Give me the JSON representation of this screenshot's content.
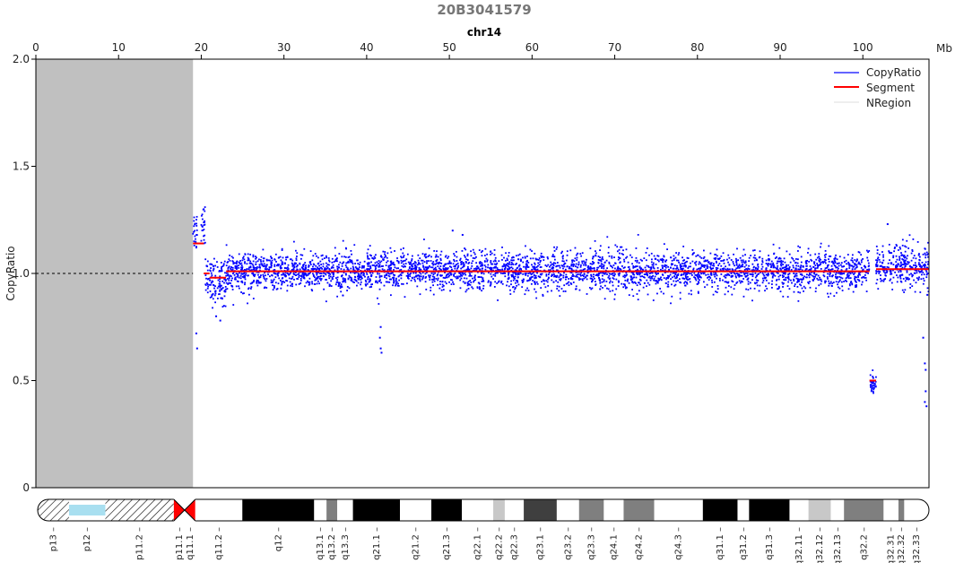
{
  "chart_data": {
    "type": "scatter",
    "title": "20B3041579",
    "subtitle": "chr14",
    "x_unit": "Mb",
    "xlabel": "",
    "ylabel": "CopyRatio",
    "xlim": [
      0,
      108
    ],
    "ylim": [
      0,
      2.0
    ],
    "x_ticks": [
      0,
      10,
      20,
      30,
      40,
      50,
      60,
      70,
      80,
      90,
      100
    ],
    "y_ticks": [
      0,
      0.5,
      1.0,
      1.5,
      2.0
    ],
    "y_tick_labels": [
      "0",
      "0.5",
      "1.0",
      "1.5",
      "2.0"
    ],
    "reference_line": 1.0,
    "legend_position": "top-right",
    "series": [
      {
        "name": "CopyRatio",
        "kind": "points",
        "color": "#0000ff"
      },
      {
        "name": "Segment",
        "kind": "line",
        "color": "#ff0000",
        "segments": [
          {
            "start": 19.0,
            "end": 20.3,
            "value": 1.14
          },
          {
            "start": 20.3,
            "end": 21.0,
            "value": 1.0
          },
          {
            "start": 21.0,
            "end": 23.0,
            "value": 0.98
          },
          {
            "start": 23.0,
            "end": 100.8,
            "value": 1.01
          },
          {
            "start": 100.8,
            "end": 101.6,
            "value": 0.5
          },
          {
            "start": 101.6,
            "end": 108.0,
            "value": 1.02
          }
        ]
      },
      {
        "name": "NRegion",
        "kind": "region",
        "color": "#c0c0c0",
        "regions": [
          {
            "start": 0,
            "end": 19.0
          }
        ]
      }
    ],
    "point_clusters": [
      {
        "start": 19.0,
        "end": 19.5,
        "mean": 1.2,
        "sd": 0.05
      },
      {
        "start": 20.0,
        "end": 20.5,
        "mean": 1.25,
        "sd": 0.06
      },
      {
        "start": 20.5,
        "end": 23.0,
        "mean": 0.96,
        "sd": 0.05
      },
      {
        "start": 23.0,
        "end": 100.8,
        "mean": 1.01,
        "sd": 0.045
      },
      {
        "start": 100.8,
        "end": 101.6,
        "mean": 0.48,
        "sd": 0.03
      },
      {
        "start": 101.6,
        "end": 108.0,
        "mean": 1.03,
        "sd": 0.05
      }
    ],
    "outliers": [
      {
        "x": 19.4,
        "y": 0.72
      },
      {
        "x": 19.5,
        "y": 0.65
      },
      {
        "x": 21.8,
        "y": 0.8
      },
      {
        "x": 22.3,
        "y": 0.78
      },
      {
        "x": 41.6,
        "y": 0.7
      },
      {
        "x": 41.7,
        "y": 0.65
      },
      {
        "x": 41.8,
        "y": 0.63
      },
      {
        "x": 41.7,
        "y": 0.75
      },
      {
        "x": 50.4,
        "y": 1.2
      },
      {
        "x": 51.6,
        "y": 1.18
      },
      {
        "x": 103.0,
        "y": 1.23
      },
      {
        "x": 107.5,
        "y": 0.4
      },
      {
        "x": 107.6,
        "y": 0.45
      },
      {
        "x": 107.7,
        "y": 0.38
      },
      {
        "x": 107.5,
        "y": 0.58
      },
      {
        "x": 107.6,
        "y": 0.55
      },
      {
        "x": 107.3,
        "y": 0.7
      },
      {
        "x": 107.8,
        "y": 0.9
      }
    ],
    "ideogram": {
      "bands": [
        {
          "name": "p13",
          "start": 0,
          "end": 3.8,
          "stain": "hatch"
        },
        {
          "name": "p12",
          "start": 3.8,
          "end": 8.2,
          "stain": "stalk"
        },
        {
          "name": "p11.2",
          "start": 8.2,
          "end": 16.5,
          "stain": "hatch"
        },
        {
          "name": "p11.1",
          "start": 16.5,
          "end": 17.8,
          "stain": "acen_p"
        },
        {
          "name": "q11.1",
          "start": 17.8,
          "end": 19.1,
          "stain": "acen_q"
        },
        {
          "name": "q11.2",
          "start": 19.1,
          "end": 24.8,
          "stain": "gneg"
        },
        {
          "name": "q12",
          "start": 24.8,
          "end": 33.5,
          "stain": "gpos100"
        },
        {
          "name": "q13.1",
          "start": 33.5,
          "end": 35.0,
          "stain": "gneg"
        },
        {
          "name": "q13.2",
          "start": 35.0,
          "end": 36.3,
          "stain": "gpos50"
        },
        {
          "name": "q13.3",
          "start": 36.3,
          "end": 38.2,
          "stain": "gneg"
        },
        {
          "name": "q21.1",
          "start": 38.2,
          "end": 43.9,
          "stain": "gpos100"
        },
        {
          "name": "q21.2",
          "start": 43.9,
          "end": 47.7,
          "stain": "gneg"
        },
        {
          "name": "q21.3",
          "start": 47.7,
          "end": 51.4,
          "stain": "gpos100"
        },
        {
          "name": "q22.1",
          "start": 51.4,
          "end": 55.2,
          "stain": "gneg"
        },
        {
          "name": "q22.2",
          "start": 55.2,
          "end": 56.6,
          "stain": "gpos25"
        },
        {
          "name": "q22.3",
          "start": 56.6,
          "end": 58.9,
          "stain": "gneg"
        },
        {
          "name": "q23.1",
          "start": 58.9,
          "end": 62.9,
          "stain": "gpos75"
        },
        {
          "name": "q23.2",
          "start": 62.9,
          "end": 65.6,
          "stain": "gneg"
        },
        {
          "name": "q23.3",
          "start": 65.6,
          "end": 68.6,
          "stain": "gpos50"
        },
        {
          "name": "q24.1",
          "start": 68.6,
          "end": 71.0,
          "stain": "gneg"
        },
        {
          "name": "q24.2",
          "start": 71.0,
          "end": 74.7,
          "stain": "gpos50"
        },
        {
          "name": "q24.3",
          "start": 74.7,
          "end": 80.6,
          "stain": "gneg"
        },
        {
          "name": "q31.1",
          "start": 80.6,
          "end": 84.8,
          "stain": "gpos100"
        },
        {
          "name": "q31.2",
          "start": 84.8,
          "end": 86.2,
          "stain": "gneg"
        },
        {
          "name": "q31.3",
          "start": 86.2,
          "end": 91.1,
          "stain": "gpos100"
        },
        {
          "name": "q32.11",
          "start": 91.1,
          "end": 93.4,
          "stain": "gneg"
        },
        {
          "name": "q32.12",
          "start": 93.4,
          "end": 96.1,
          "stain": "gpos25"
        },
        {
          "name": "q32.13",
          "start": 96.1,
          "end": 97.7,
          "stain": "gneg"
        },
        {
          "name": "q32.2",
          "start": 97.7,
          "end": 102.5,
          "stain": "gpos50"
        },
        {
          "name": "q32.31",
          "start": 102.5,
          "end": 104.3,
          "stain": "gneg"
        },
        {
          "name": "q32.32",
          "start": 104.3,
          "end": 105.0,
          "stain": "gpos50"
        },
        {
          "name": "q32.33",
          "start": 105.0,
          "end": 108.0,
          "stain": "gneg"
        }
      ]
    }
  }
}
